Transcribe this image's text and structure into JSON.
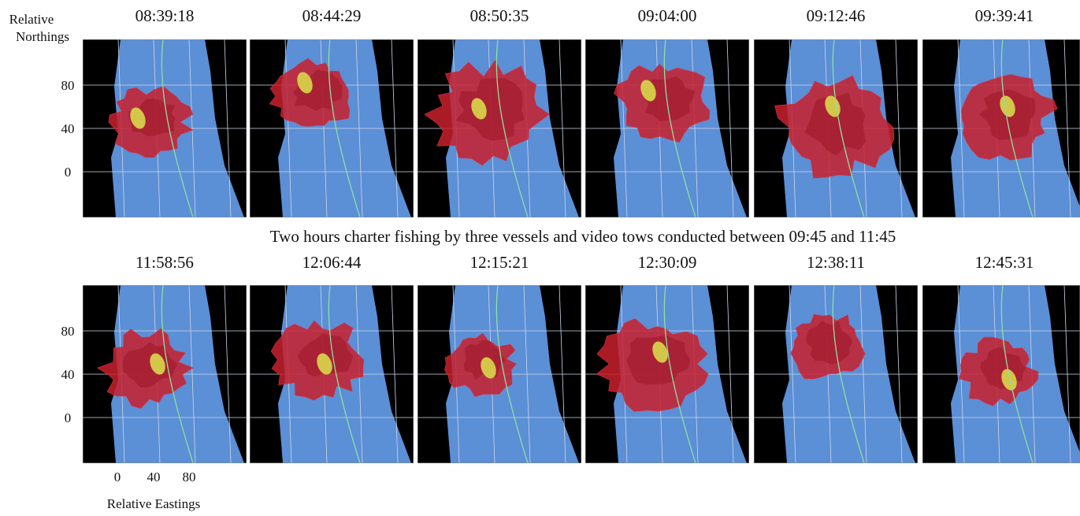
{
  "y_axis_label": {
    "line1": "Relative",
    "line2": "Northings"
  },
  "x_axis_label": "Relative Eastings",
  "y_ticks": [
    80,
    40,
    0
  ],
  "x_ticks": [
    0,
    40,
    80
  ],
  "rows": [
    {
      "times": [
        "08:39:18",
        "08:44:29",
        "08:50:35",
        "09:04:00",
        "09:12:46",
        "09:39:41"
      ]
    },
    {
      "times": [
        "11:58:56",
        "12:06:44",
        "12:15:21",
        "12:30:09",
        "12:38:11",
        "12:45:31"
      ]
    }
  ],
  "caption": "Two hours charter fishing by three vessels and video tows conducted between 09:45 and 11:45"
}
